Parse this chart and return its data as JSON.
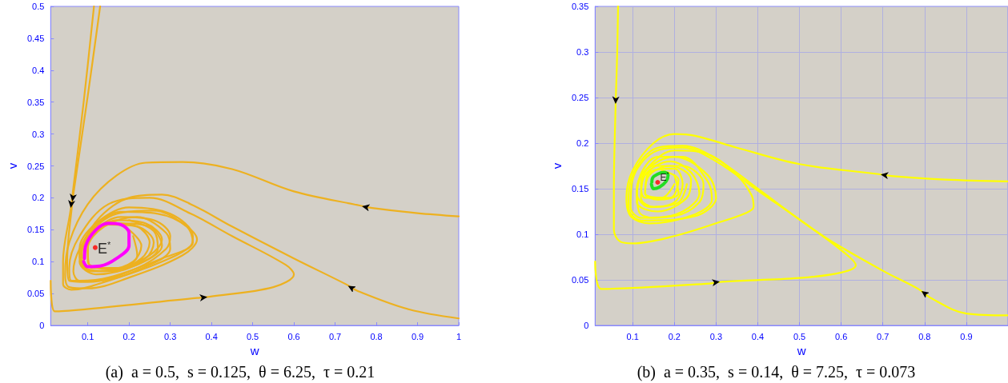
{
  "chart_data": [
    {
      "type": "line",
      "xlabel": "w",
      "ylabel": "v",
      "xlim": [
        0.01,
        1
      ],
      "ylim": [
        0,
        0.5
      ],
      "xticks": [
        0.1,
        0.2,
        0.3,
        0.4,
        0.5,
        0.6,
        0.7,
        0.8,
        0.9,
        1
      ],
      "yticks": [
        0,
        0.05,
        0.1,
        0.15,
        0.2,
        0.25,
        0.3,
        0.35,
        0.4,
        0.45,
        0.5
      ],
      "grid": false,
      "annotations": [
        "E$^{*}$",
        "(a)  a = 0.5,  s = 0.125,  θ = 6.25,  τ = 0.21"
      ],
      "series": [
        {
          "color": "#edb120",
          "x": [
            0.115,
            0.09,
            0.062,
            0.058,
            0.04,
            0.04,
            0.06,
            0.15,
            0.28,
            0.35,
            0.355,
            0.3,
            0.2,
            0.12,
            0.08,
            0.09,
            0.15,
            0.25,
            0.28,
            0.24,
            0.17,
            0.11,
            0.09,
            0.1,
            0.16,
            0.23,
            0.25,
            0.22,
            0.16
          ],
          "values": [
            0.5,
            0.35,
            0.2,
            0.18,
            0.1,
            0.065,
            0.056,
            0.07,
            0.1,
            0.125,
            0.14,
            0.175,
            0.185,
            0.16,
            0.12,
            0.09,
            0.085,
            0.11,
            0.135,
            0.16,
            0.165,
            0.14,
            0.11,
            0.088,
            0.085,
            0.105,
            0.13,
            0.155,
            0.16
          ]
        },
        {
          "color": "#edb120",
          "x": [
            0.13,
            0.1,
            0.066,
            0.062,
            0.05,
            0.055,
            0.1,
            0.22,
            0.29,
            0.3,
            0.26,
            0.18,
            0.11,
            0.085,
            0.1,
            0.16,
            0.24,
            0.26,
            0.22,
            0.15,
            0.1,
            0.1,
            0.15,
            0.21,
            0.23,
            0.2
          ],
          "values": [
            0.5,
            0.36,
            0.21,
            0.19,
            0.1,
            0.07,
            0.068,
            0.09,
            0.12,
            0.14,
            0.165,
            0.17,
            0.145,
            0.11,
            0.085,
            0.085,
            0.105,
            0.13,
            0.155,
            0.158,
            0.135,
            0.1,
            0.088,
            0.1,
            0.125,
            0.15
          ]
        },
        {
          "color": "#edb120",
          "x": [
            1,
            0.9,
            0.79,
            0.76,
            0.6,
            0.45,
            0.33,
            0.24,
            0.17,
            0.1,
            0.055,
            0.045,
            0.055,
            0.1,
            0.2,
            0.33,
            0.365,
            0.33,
            0.26,
            0.17,
            0.1,
            0.08,
            0.12,
            0.22,
            0.28,
            0.25,
            0.18
          ],
          "values": [
            0.171,
            0.176,
            0.184,
            0.188,
            0.21,
            0.245,
            0.256,
            0.255,
            0.235,
            0.19,
            0.13,
            0.08,
            0.06,
            0.058,
            0.075,
            0.11,
            0.135,
            0.16,
            0.18,
            0.175,
            0.14,
            0.1,
            0.08,
            0.095,
            0.125,
            0.155,
            0.16
          ]
        },
        {
          "color": "#edb120",
          "x": [
            1,
            0.88,
            0.755,
            0.725,
            0.6,
            0.45,
            0.35,
            0.28,
            0.2,
            0.13,
            0.08,
            0.065,
            0.08,
            0.15,
            0.28,
            0.355,
            0.34,
            0.27,
            0.18,
            0.11,
            0.08,
            0.11,
            0.2,
            0.27,
            0.26,
            0.2
          ],
          "values": [
            0.011,
            0.025,
            0.054,
            0.065,
            0.105,
            0.155,
            0.19,
            0.205,
            0.2,
            0.17,
            0.12,
            0.085,
            0.07,
            0.075,
            0.105,
            0.13,
            0.155,
            0.175,
            0.178,
            0.15,
            0.11,
            0.085,
            0.092,
            0.12,
            0.148,
            0.165
          ]
        },
        {
          "color": "#edb120",
          "x": [
            0.01,
            0.02,
            0.365,
            0.395,
            0.55,
            0.6,
            0.58,
            0.45,
            0.35,
            0.25,
            0.15,
            0.08,
            0.055,
            0.06,
            0.12,
            0.25,
            0.3,
            0.29,
            0.22,
            0.14,
            0.1,
            0.11,
            0.18,
            0.22,
            0.21
          ],
          "values": [
            0.07,
            0.022,
            0.043,
            0.045,
            0.06,
            0.08,
            0.095,
            0.14,
            0.175,
            0.2,
            0.19,
            0.14,
            0.09,
            0.07,
            0.07,
            0.095,
            0.12,
            0.145,
            0.17,
            0.155,
            0.12,
            0.09,
            0.09,
            0.11,
            0.14
          ]
        },
        {
          "color": "#ff00ff",
          "x": [
            0.09,
            0.1,
            0.13,
            0.17,
            0.2,
            0.2,
            0.18,
            0.15,
            0.12,
            0.095,
            0.092
          ],
          "values": [
            0.1,
            0.092,
            0.093,
            0.105,
            0.125,
            0.145,
            0.158,
            0.16,
            0.15,
            0.125,
            0.105
          ]
        },
        {
          "type": "scatter",
          "color": "#ff0000",
          "x": [
            0.118
          ],
          "values": [
            0.122
          ]
        }
      ]
    },
    {
      "type": "line",
      "xlabel": "w",
      "ylabel": "v",
      "xlim": [
        0.01,
        1
      ],
      "ylim": [
        0,
        0.35
      ],
      "xticks": [
        0.1,
        0.2,
        0.3,
        0.4,
        0.5,
        0.6,
        0.7,
        0.8,
        0.9
      ],
      "yticks": [
        0,
        0.05,
        0.1,
        0.15,
        0.2,
        0.25,
        0.3,
        0.35
      ],
      "grid": true,
      "annotations": [
        "E$^{*}$",
        "(b)  a = 0.35,  s = 0.14,  θ = 7.25,  τ = 0.073"
      ],
      "series": [
        {
          "color": "#ffff00",
          "x": [
            0.065,
            0.063,
            0.06,
            0.059,
            0.055,
            0.055,
            0.07,
            0.1,
            0.2,
            0.3,
            0.37,
            0.39,
            0.385,
            0.35,
            0.28,
            0.2,
            0.14,
            0.11,
            0.115,
            0.15,
            0.22,
            0.26,
            0.24,
            0.19,
            0.13,
            0.12,
            0.15,
            0.2,
            0.22,
            0.2,
            0.14,
            0.13,
            0.16,
            0.21,
            0.2
          ],
          "values": [
            0.35,
            0.3,
            0.255,
            0.24,
            0.15,
            0.105,
            0.092,
            0.09,
            0.098,
            0.112,
            0.123,
            0.13,
            0.143,
            0.165,
            0.188,
            0.192,
            0.175,
            0.15,
            0.125,
            0.118,
            0.125,
            0.145,
            0.168,
            0.18,
            0.165,
            0.14,
            0.13,
            0.135,
            0.155,
            0.172,
            0.168,
            0.145,
            0.138,
            0.145,
            0.165
          ]
        },
        {
          "color": "#ffff00",
          "x": [
            1,
            0.85,
            0.72,
            0.69,
            0.5,
            0.35,
            0.25,
            0.2,
            0.15,
            0.1,
            0.085,
            0.095,
            0.14,
            0.25,
            0.29,
            0.28,
            0.22,
            0.16,
            0.115,
            0.11,
            0.16,
            0.23,
            0.24,
            0.19,
            0.14,
            0.13,
            0.17,
            0.2
          ],
          "values": [
            0.158,
            0.16,
            0.164,
            0.166,
            0.177,
            0.195,
            0.208,
            0.21,
            0.2,
            0.17,
            0.14,
            0.12,
            0.112,
            0.122,
            0.138,
            0.158,
            0.185,
            0.185,
            0.16,
            0.135,
            0.125,
            0.14,
            0.16,
            0.175,
            0.165,
            0.145,
            0.14,
            0.155
          ]
        },
        {
          "color": "#ffff00",
          "x": [
            1,
            0.9,
            0.815,
            0.785,
            0.7,
            0.55,
            0.4,
            0.3,
            0.22,
            0.16,
            0.1,
            0.09,
            0.12,
            0.25,
            0.3,
            0.28,
            0.2,
            0.13,
            0.11,
            0.14,
            0.21,
            0.23
          ],
          "values": [
            0.011,
            0.013,
            0.03,
            0.04,
            0.06,
            0.1,
            0.15,
            0.183,
            0.197,
            0.195,
            0.165,
            0.13,
            0.115,
            0.12,
            0.14,
            0.165,
            0.185,
            0.17,
            0.145,
            0.13,
            0.135,
            0.155
          ]
        },
        {
          "color": "#ffff00",
          "x": [
            0.01,
            0.025,
            0.285,
            0.315,
            0.5,
            0.6,
            0.635,
            0.62,
            0.55,
            0.4,
            0.3,
            0.22,
            0.15,
            0.1,
            0.095,
            0.12,
            0.2,
            0.26,
            0.27,
            0.22,
            0.15,
            0.12,
            0.13,
            0.19,
            0.21,
            0.17
          ],
          "values": [
            0.07,
            0.04,
            0.046,
            0.048,
            0.052,
            0.058,
            0.066,
            0.075,
            0.1,
            0.148,
            0.18,
            0.195,
            0.19,
            0.16,
            0.13,
            0.118,
            0.12,
            0.135,
            0.155,
            0.175,
            0.175,
            0.155,
            0.14,
            0.14,
            0.16,
            0.17
          ]
        },
        {
          "color": "#22dd22",
          "x": [
            0.145,
            0.15,
            0.165,
            0.18,
            0.185,
            0.175,
            0.16,
            0.148,
            0.146
          ],
          "values": [
            0.155,
            0.15,
            0.152,
            0.158,
            0.165,
            0.168,
            0.166,
            0.162,
            0.157
          ]
        },
        {
          "type": "scatter",
          "color": "#ff0000",
          "x": [
            0.16
          ],
          "values": [
            0.157
          ]
        }
      ]
    }
  ]
}
